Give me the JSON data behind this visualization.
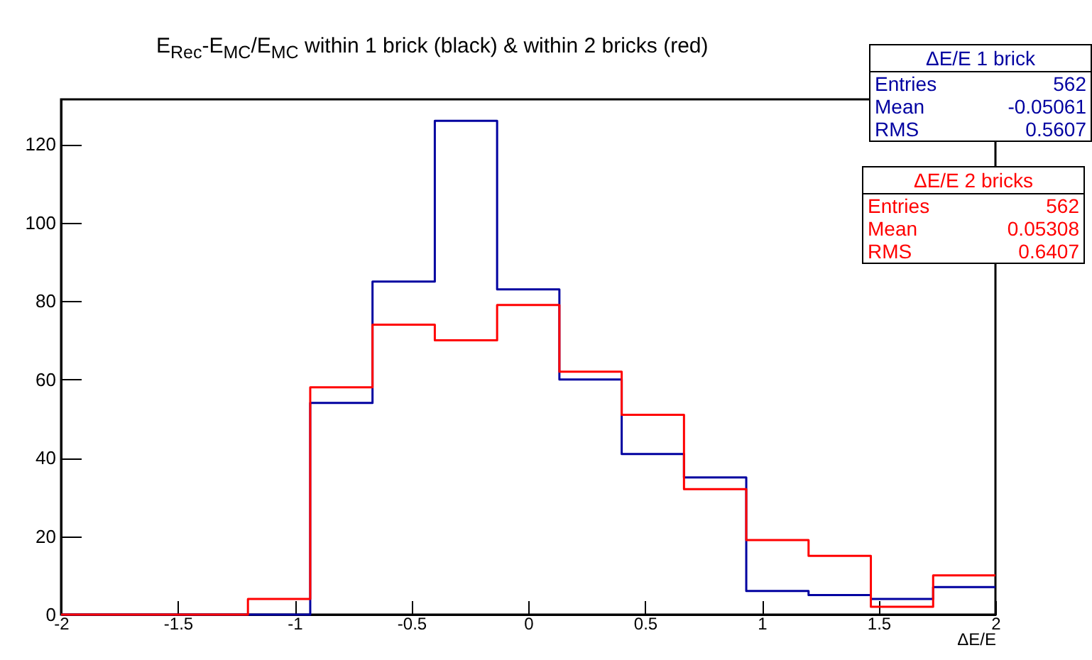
{
  "chart_data": {
    "type": "histogram",
    "title": "E$_{Rec}$-E$_{MC}$/E$_{MC}$ within 1 brick (black) & within 2 bricks (red)",
    "xlabel": "ΔE/E",
    "bins": [
      -2,
      -1.7333,
      -1.4667,
      -1.2,
      -0.9333,
      -0.6667,
      -0.4,
      -0.1333,
      0.1333,
      0.4,
      0.6667,
      0.9333,
      1.2,
      1.4667,
      1.7333,
      2
    ],
    "series": [
      {
        "name": "ΔE/E 1 brick",
        "color": "#0000a0",
        "values": [
          0,
          0,
          0,
          0,
          54,
          85,
          126,
          83,
          60,
          41,
          35,
          6,
          5,
          4,
          7
        ]
      },
      {
        "name": "ΔE/E 2 bricks",
        "color": "#ff0000",
        "values": [
          0,
          0,
          0,
          4,
          58,
          74,
          70,
          79,
          62,
          51,
          32,
          19,
          15,
          2,
          10
        ]
      }
    ],
    "annotations": [
      "Entries 562",
      "Mean -0.05061",
      "RMS 0.5607",
      "Entries 562",
      "Mean 0.05308",
      "RMS 0.6407"
    ],
    "xlim": [
      -2,
      2
    ],
    "xticks": [
      -2,
      -1.5,
      -1,
      -0.5,
      0,
      0.5,
      1,
      1.5,
      2
    ],
    "ylim": [
      0,
      131.5
    ],
    "yticks": [
      0,
      20,
      40,
      60,
      80,
      100,
      120
    ],
    "legend": "top right",
    "grid": false
  }
}
